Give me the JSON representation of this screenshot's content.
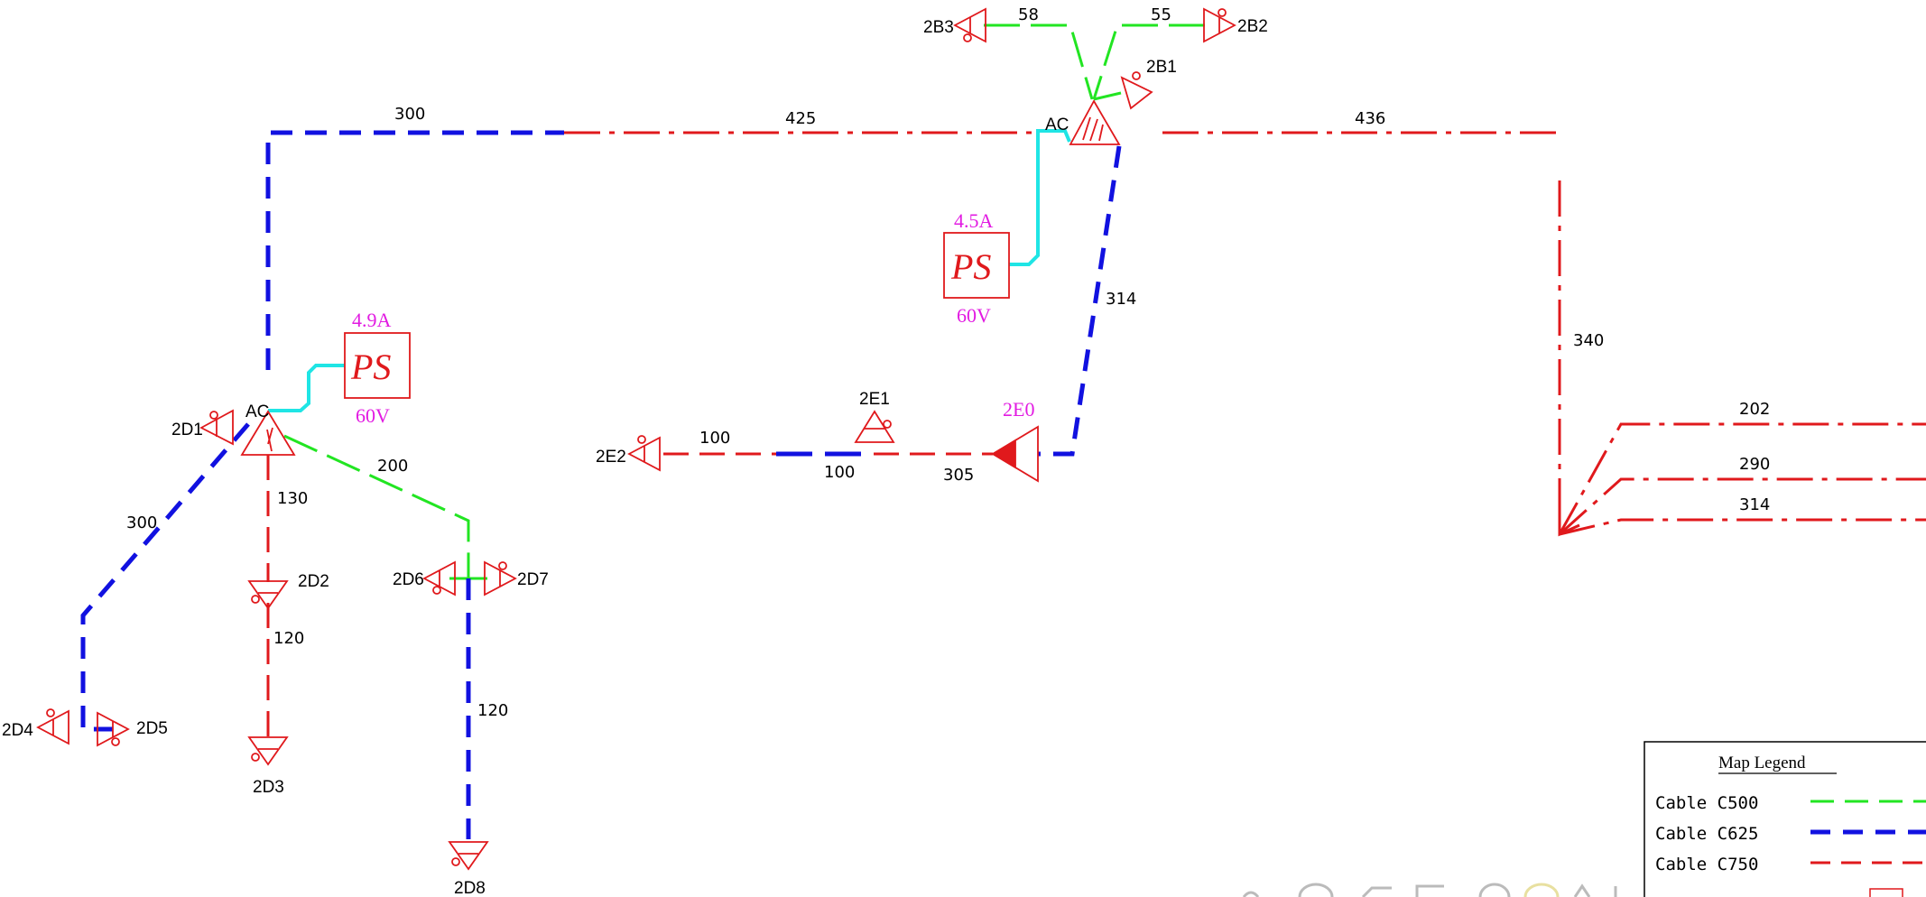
{
  "colors": {
    "c500": "#22e522",
    "c625": "#1111e0",
    "c750": "#e0191c",
    "ac_feed": "#1fe5e5",
    "annotation": "#e21be2",
    "device": "#e0191c"
  },
  "icons": [
    "tap-triangle-icon",
    "amplifier-triangle-icon",
    "ac-amplifier-icon",
    "directional-coupler-icon",
    "power-supply-icon"
  ],
  "devices": {
    "2B3": "2B3",
    "2B2": "2B2",
    "2B1": "2B1",
    "2D1": "2D1",
    "2D2": "2D2",
    "2D3": "2D3",
    "2D4": "2D4",
    "2D5": "2D5",
    "2D6": "2D6",
    "2D7": "2D7",
    "2D8": "2D8",
    "2E1": "2E1",
    "2E2": "2E2",
    "2E0": "2E0"
  },
  "ac_labels": {
    "top": "AC",
    "left": "AC"
  },
  "power_supplies": {
    "top": {
      "label": "PS",
      "current": "4.5A",
      "voltage": "60V"
    },
    "left": {
      "label": "PS",
      "current": "4.9A",
      "voltage": "60V"
    }
  },
  "cable_lengths": {
    "b3": "58",
    "b2": "55",
    "top_blue": "300",
    "top_red": "425",
    "top_right": "436",
    "b1_e0": "314",
    "right_down": "340",
    "r1": "202",
    "r2": "290",
    "r3": "314",
    "d_300": "300",
    "d_130": "130",
    "d_200": "200",
    "d_120a": "120",
    "d_120b": "120",
    "e2_100": "100",
    "e_100": "100",
    "e_305": "305"
  },
  "legend": {
    "title": "Map Legend",
    "rows": [
      {
        "label": "Cable  C500",
        "color": "#22e522",
        "style": "long-dash"
      },
      {
        "label": "Cable  C625",
        "color": "#1111e0",
        "style": "bold-dash"
      },
      {
        "label": "Cable  C750",
        "color": "#e0191c",
        "style": "dash"
      }
    ]
  }
}
